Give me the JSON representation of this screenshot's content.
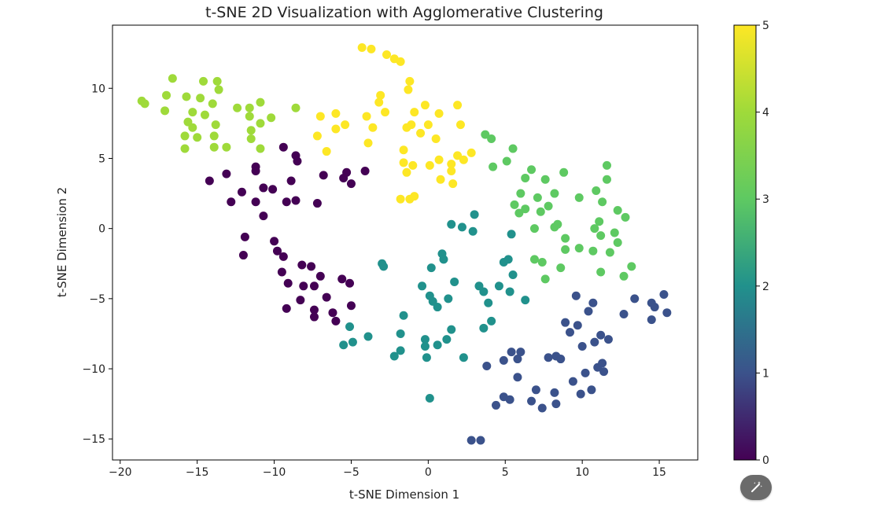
{
  "chart_data": {
    "type": "scatter",
    "title": "t-SNE 2D Visualization with Agglomerative Clustering",
    "xlabel": "t-SNE Dimension 1",
    "ylabel": "t-SNE Dimension 2",
    "xlim": [
      -20.5,
      17.5
    ],
    "ylim": [
      -16.5,
      14.5
    ],
    "xticks": [
      -20,
      -15,
      -10,
      -5,
      0,
      5,
      10,
      15
    ],
    "yticks": [
      -15,
      -10,
      -5,
      0,
      5,
      10
    ],
    "colormap": "viridis",
    "colorbar": {
      "range": [
        0,
        5
      ],
      "ticks": [
        0,
        1,
        2,
        3,
        4,
        5
      ]
    },
    "grid": false,
    "points": [
      [
        -14.2,
        3.4,
        0
      ],
      [
        -13.1,
        3.9,
        0
      ],
      [
        -12.8,
        1.9,
        0
      ],
      [
        -12.1,
        2.6,
        0
      ],
      [
        -11.2,
        4.4,
        0
      ],
      [
        -11.2,
        4.1,
        0
      ],
      [
        -10.7,
        2.9,
        0
      ],
      [
        -10.1,
        2.8,
        0
      ],
      [
        -11.2,
        1.9,
        0
      ],
      [
        -10.7,
        0.9,
        0
      ],
      [
        -9.4,
        5.8,
        0
      ],
      [
        -8.6,
        5.2,
        0
      ],
      [
        -8.5,
        4.8,
        0
      ],
      [
        -8.9,
        3.4,
        0
      ],
      [
        -9.2,
        1.9,
        0
      ],
      [
        -8.6,
        2.0,
        0
      ],
      [
        -7.2,
        1.8,
        0
      ],
      [
        -6.8,
        3.8,
        0
      ],
      [
        -5.5,
        3.6,
        0
      ],
      [
        -5.3,
        4.0,
        0
      ],
      [
        -5.0,
        3.2,
        0
      ],
      [
        -4.1,
        4.1,
        0
      ],
      [
        -11.9,
        -0.6,
        0
      ],
      [
        -12.0,
        -1.9,
        0
      ],
      [
        -10.0,
        -0.9,
        0
      ],
      [
        -9.8,
        -1.6,
        0
      ],
      [
        -9.4,
        -2.0,
        0
      ],
      [
        -9.5,
        -3.1,
        0
      ],
      [
        -9.1,
        -3.9,
        0
      ],
      [
        -8.2,
        -2.6,
        0
      ],
      [
        -7.6,
        -2.7,
        0
      ],
      [
        -7.0,
        -3.4,
        0
      ],
      [
        -8.1,
        -4.1,
        0
      ],
      [
        -7.4,
        -4.1,
        0
      ],
      [
        -8.3,
        -5.1,
        0
      ],
      [
        -9.2,
        -5.7,
        0
      ],
      [
        -7.4,
        -5.8,
        0
      ],
      [
        -7.4,
        -6.3,
        0
      ],
      [
        -6.6,
        -4.9,
        0
      ],
      [
        -6.2,
        -6.0,
        0
      ],
      [
        -6.0,
        -6.6,
        0
      ],
      [
        -5.6,
        -3.6,
        0
      ],
      [
        -5.1,
        -3.9,
        0
      ],
      [
        -5.0,
        -5.5,
        0
      ],
      [
        3.8,
        -9.8,
        1
      ],
      [
        4.4,
        -12.6,
        1
      ],
      [
        4.9,
        -9.4,
        1
      ],
      [
        4.9,
        -12.0,
        1
      ],
      [
        5.3,
        -12.2,
        1
      ],
      [
        5.4,
        -8.8,
        1
      ],
      [
        5.8,
        -9.3,
        1
      ],
      [
        5.8,
        -10.6,
        1
      ],
      [
        6.0,
        -8.8,
        1
      ],
      [
        6.7,
        -12.3,
        1
      ],
      [
        7.0,
        -11.5,
        1
      ],
      [
        7.4,
        -12.8,
        1
      ],
      [
        7.8,
        -9.2,
        1
      ],
      [
        8.2,
        -11.7,
        1
      ],
      [
        8.3,
        -12.5,
        1
      ],
      [
        8.3,
        -9.1,
        1
      ],
      [
        8.6,
        -9.3,
        1
      ],
      [
        8.9,
        -6.7,
        1
      ],
      [
        9.2,
        -7.4,
        1
      ],
      [
        9.4,
        -10.9,
        1
      ],
      [
        9.6,
        -4.8,
        1
      ],
      [
        9.7,
        -6.9,
        1
      ],
      [
        9.9,
        -11.8,
        1
      ],
      [
        10.0,
        -8.4,
        1
      ],
      [
        10.2,
        -10.3,
        1
      ],
      [
        10.4,
        -5.9,
        1
      ],
      [
        10.6,
        -11.5,
        1
      ],
      [
        10.7,
        -5.3,
        1
      ],
      [
        10.8,
        -8.1,
        1
      ],
      [
        11.0,
        -9.9,
        1
      ],
      [
        11.2,
        -7.6,
        1
      ],
      [
        11.3,
        -9.6,
        1
      ],
      [
        11.4,
        -10.2,
        1
      ],
      [
        11.7,
        -7.9,
        1
      ],
      [
        12.7,
        -6.1,
        1
      ],
      [
        13.4,
        -5.0,
        1
      ],
      [
        14.5,
        -5.3,
        1
      ],
      [
        14.5,
        -6.5,
        1
      ],
      [
        14.7,
        -5.6,
        1
      ],
      [
        15.3,
        -4.7,
        1
      ],
      [
        15.5,
        -6.0,
        1
      ],
      [
        2.8,
        -15.1,
        1
      ],
      [
        3.4,
        -15.1,
        1
      ],
      [
        -5.5,
        -8.3,
        2
      ],
      [
        -5.1,
        -7.0,
        2
      ],
      [
        -4.9,
        -8.1,
        2
      ],
      [
        -3.9,
        -7.7,
        2
      ],
      [
        -3.0,
        -2.5,
        2
      ],
      [
        -2.9,
        -2.7,
        2
      ],
      [
        -2.2,
        -9.1,
        2
      ],
      [
        -1.8,
        -7.5,
        2
      ],
      [
        -1.8,
        -8.7,
        2
      ],
      [
        -1.6,
        -6.2,
        2
      ],
      [
        -0.4,
        -4.1,
        2
      ],
      [
        -0.2,
        -8.4,
        2
      ],
      [
        -0.1,
        -9.2,
        2
      ],
      [
        -0.2,
        -7.9,
        2
      ],
      [
        0.1,
        -4.8,
        2
      ],
      [
        0.2,
        -2.8,
        2
      ],
      [
        0.3,
        -5.2,
        2
      ],
      [
        0.6,
        -5.6,
        2
      ],
      [
        0.6,
        -8.3,
        2
      ],
      [
        0.9,
        -1.8,
        2
      ],
      [
        1.0,
        -2.2,
        2
      ],
      [
        1.2,
        -7.9,
        2
      ],
      [
        1.3,
        -5.0,
        2
      ],
      [
        1.5,
        -7.2,
        2
      ],
      [
        1.5,
        0.3,
        2
      ],
      [
        1.7,
        -3.8,
        2
      ],
      [
        2.2,
        0.1,
        2
      ],
      [
        2.3,
        -9.2,
        2
      ],
      [
        2.9,
        -0.2,
        2
      ],
      [
        3.0,
        1.0,
        2
      ],
      [
        3.3,
        -4.1,
        2
      ],
      [
        3.6,
        -4.5,
        2
      ],
      [
        3.6,
        -7.1,
        2
      ],
      [
        3.9,
        -5.3,
        2
      ],
      [
        4.1,
        -6.6,
        2
      ],
      [
        4.6,
        -4.1,
        2
      ],
      [
        4.9,
        -2.4,
        2
      ],
      [
        5.2,
        -2.2,
        2
      ],
      [
        5.3,
        -4.5,
        2
      ],
      [
        5.4,
        -0.4,
        2
      ],
      [
        5.5,
        -3.3,
        2
      ],
      [
        6.3,
        -5.1,
        2
      ],
      [
        0.1,
        -12.1,
        2
      ],
      [
        3.7,
        6.7,
        3
      ],
      [
        4.1,
        6.4,
        3
      ],
      [
        4.2,
        4.4,
        3
      ],
      [
        5.1,
        4.8,
        3
      ],
      [
        5.5,
        5.7,
        3
      ],
      [
        5.6,
        1.7,
        3
      ],
      [
        5.9,
        1.1,
        3
      ],
      [
        6.0,
        2.5,
        3
      ],
      [
        6.3,
        3.6,
        3
      ],
      [
        6.3,
        1.4,
        3
      ],
      [
        6.7,
        4.2,
        3
      ],
      [
        6.9,
        0.0,
        3
      ],
      [
        6.9,
        -2.2,
        3
      ],
      [
        7.1,
        2.2,
        3
      ],
      [
        7.3,
        1.2,
        3
      ],
      [
        7.4,
        -2.4,
        3
      ],
      [
        7.6,
        -3.6,
        3
      ],
      [
        7.6,
        3.5,
        3
      ],
      [
        7.8,
        1.6,
        3
      ],
      [
        8.2,
        2.5,
        3
      ],
      [
        8.2,
        0.1,
        3
      ],
      [
        8.4,
        0.3,
        3
      ],
      [
        8.6,
        -2.8,
        3
      ],
      [
        8.8,
        4.0,
        3
      ],
      [
        8.9,
        -0.7,
        3
      ],
      [
        8.9,
        -1.5,
        3
      ],
      [
        9.8,
        -1.4,
        3
      ],
      [
        9.8,
        2.2,
        3
      ],
      [
        10.7,
        -1.6,
        3
      ],
      [
        10.8,
        0.0,
        3
      ],
      [
        10.9,
        2.7,
        3
      ],
      [
        11.1,
        0.5,
        3
      ],
      [
        11.2,
        -0.5,
        3
      ],
      [
        11.2,
        -3.1,
        3
      ],
      [
        11.3,
        1.9,
        3
      ],
      [
        11.6,
        4.5,
        3
      ],
      [
        11.6,
        3.5,
        3
      ],
      [
        11.8,
        -1.7,
        3
      ],
      [
        12.1,
        -0.3,
        3
      ],
      [
        12.3,
        1.3,
        3
      ],
      [
        12.3,
        -1.0,
        3
      ],
      [
        12.8,
        0.8,
        3
      ],
      [
        12.7,
        -3.4,
        3
      ],
      [
        13.2,
        -2.7,
        3
      ],
      [
        -18.6,
        9.1,
        4
      ],
      [
        -18.4,
        8.9,
        4
      ],
      [
        -17.1,
        8.4,
        4
      ],
      [
        -17.0,
        9.5,
        4
      ],
      [
        -16.6,
        10.7,
        4
      ],
      [
        -15.8,
        6.6,
        4
      ],
      [
        -15.8,
        5.7,
        4
      ],
      [
        -15.7,
        9.4,
        4
      ],
      [
        -15.6,
        7.6,
        4
      ],
      [
        -15.3,
        7.2,
        4
      ],
      [
        -15.3,
        8.3,
        4
      ],
      [
        -15.0,
        6.5,
        4
      ],
      [
        -14.8,
        9.3,
        4
      ],
      [
        -14.6,
        10.5,
        4
      ],
      [
        -14.5,
        8.1,
        4
      ],
      [
        -14.0,
        8.9,
        4
      ],
      [
        -13.9,
        6.6,
        4
      ],
      [
        -13.9,
        5.8,
        4
      ],
      [
        -13.8,
        7.4,
        4
      ],
      [
        -13.7,
        10.5,
        4
      ],
      [
        -13.6,
        9.9,
        4
      ],
      [
        -13.1,
        5.8,
        4
      ],
      [
        -12.4,
        8.6,
        4
      ],
      [
        -11.5,
        7.0,
        4
      ],
      [
        -11.6,
        8.0,
        4
      ],
      [
        -11.6,
        8.6,
        4
      ],
      [
        -11.5,
        6.4,
        4
      ],
      [
        -10.9,
        9.0,
        4
      ],
      [
        -10.9,
        7.5,
        4
      ],
      [
        -10.9,
        5.7,
        4
      ],
      [
        -10.2,
        7.9,
        4
      ],
      [
        -8.6,
        8.6,
        4
      ],
      [
        -4.3,
        12.9,
        5
      ],
      [
        -3.7,
        12.8,
        5
      ],
      [
        -2.7,
        12.4,
        5
      ],
      [
        -2.2,
        12.1,
        5
      ],
      [
        -1.8,
        11.9,
        5
      ],
      [
        -1.2,
        10.5,
        5
      ],
      [
        -1.3,
        9.9,
        5
      ],
      [
        -3.1,
        9.5,
        5
      ],
      [
        -3.2,
        9.0,
        5
      ],
      [
        -2.8,
        8.3,
        5
      ],
      [
        -0.2,
        8.8,
        5
      ],
      [
        -0.9,
        8.3,
        5
      ],
      [
        -4.0,
        8.0,
        5
      ],
      [
        -7.0,
        8.0,
        5
      ],
      [
        -6.0,
        8.2,
        5
      ],
      [
        -5.4,
        7.4,
        5
      ],
      [
        -6.0,
        7.1,
        5
      ],
      [
        -7.2,
        6.6,
        5
      ],
      [
        -6.6,
        5.5,
        5
      ],
      [
        -3.6,
        7.2,
        5
      ],
      [
        -3.9,
        6.1,
        5
      ],
      [
        -1.4,
        7.2,
        5
      ],
      [
        -1.1,
        7.4,
        5
      ],
      [
        0.0,
        7.4,
        5
      ],
      [
        -0.5,
        6.8,
        5
      ],
      [
        0.7,
        8.2,
        5
      ],
      [
        1.9,
        8.8,
        5
      ],
      [
        2.1,
        7.4,
        5
      ],
      [
        -1.6,
        5.6,
        5
      ],
      [
        0.5,
        6.4,
        5
      ],
      [
        -1.6,
        4.7,
        5
      ],
      [
        -1.0,
        4.5,
        5
      ],
      [
        -1.4,
        4.0,
        5
      ],
      [
        0.1,
        4.5,
        5
      ],
      [
        0.7,
        4.9,
        5
      ],
      [
        1.5,
        4.6,
        5
      ],
      [
        1.9,
        5.2,
        5
      ],
      [
        2.3,
        4.9,
        5
      ],
      [
        2.8,
        5.4,
        5
      ],
      [
        1.5,
        4.1,
        5
      ],
      [
        0.8,
        3.5,
        5
      ],
      [
        1.6,
        3.2,
        5
      ],
      [
        -1.8,
        2.1,
        5
      ],
      [
        -1.2,
        2.1,
        5
      ],
      [
        -0.9,
        2.3,
        5
      ]
    ]
  }
}
